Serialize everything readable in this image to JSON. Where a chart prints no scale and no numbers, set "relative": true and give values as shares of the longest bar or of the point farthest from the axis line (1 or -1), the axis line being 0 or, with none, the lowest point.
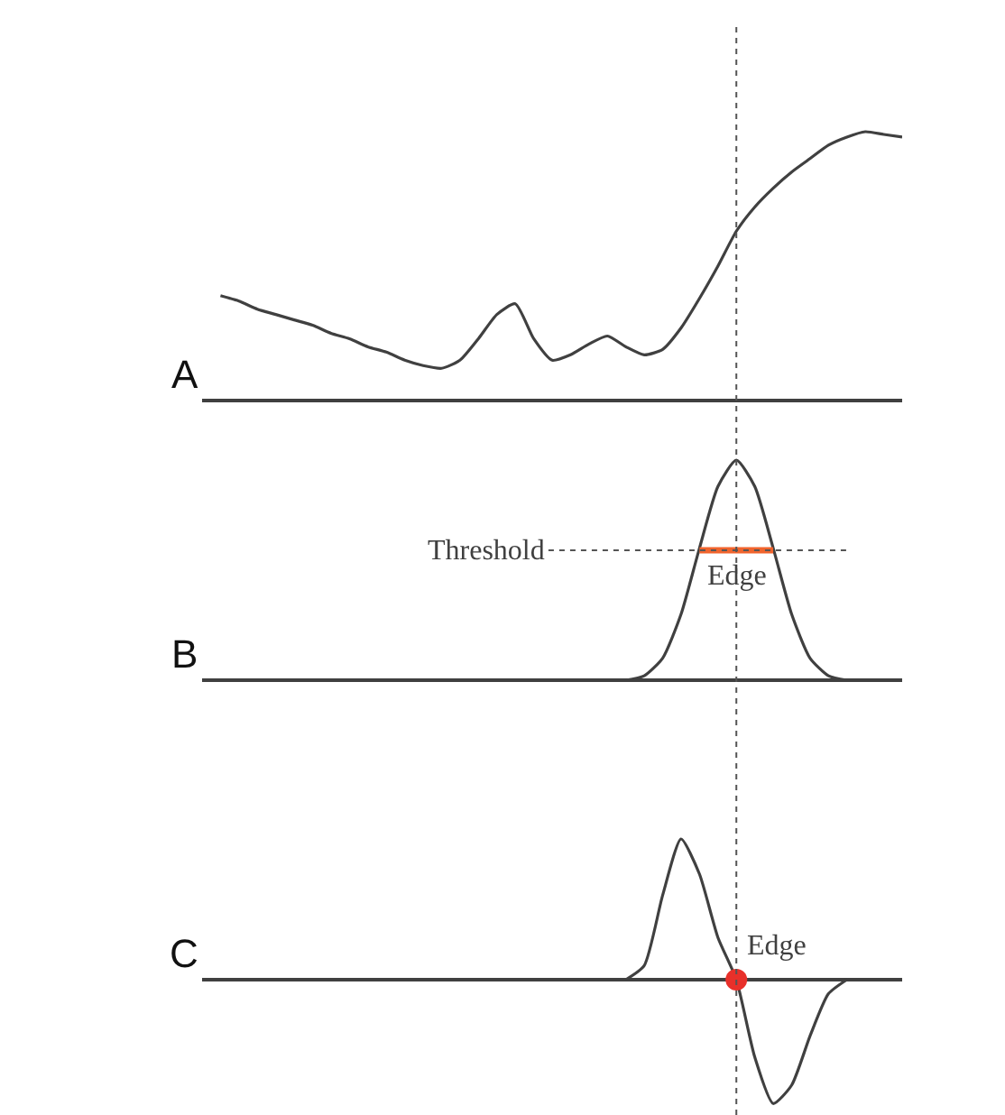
{
  "chart_data": [
    {
      "type": "line",
      "title": "A",
      "relative": true,
      "line_style": "solid",
      "marker": "none",
      "categories": [
        null,
        null,
        null,
        null,
        null,
        null,
        null,
        null,
        null,
        null,
        null,
        null,
        null,
        null,
        null,
        null,
        null,
        null,
        null,
        null,
        null,
        null,
        null,
        null,
        null,
        null,
        null,
        null,
        null,
        null,
        null,
        null,
        null,
        null,
        null,
        null,
        null,
        null,
        null
      ],
      "series": [
        {
          "color": "#404040",
          "values": [
            null,
            0.39,
            0.37,
            0.34,
            0.32,
            0.3,
            0.28,
            0.25,
            0.23,
            0.2,
            0.18,
            0.15,
            0.13,
            0.12,
            0.15,
            0.23,
            0.32,
            0.36,
            0.23,
            0.15,
            0.17,
            0.21,
            0.24,
            0.2,
            0.17,
            0.19,
            0.27,
            0.38,
            0.5,
            0.63,
            0.72,
            0.79,
            0.85,
            0.9,
            0.95,
            0.98,
            1,
            0.99,
            0.98
          ]
        }
      ]
    },
    {
      "type": "line",
      "title": "B",
      "relative": true,
      "line_style": "solid",
      "marker": "none",
      "categories": [
        null,
        null,
        null,
        null,
        null,
        null,
        null,
        null,
        null,
        null,
        null,
        null,
        null,
        null,
        null,
        null,
        null,
        null,
        null,
        null,
        null,
        null,
        null,
        null,
        null,
        null,
        null,
        null,
        null,
        null,
        null,
        null,
        null,
        null,
        null,
        null,
        null,
        null,
        null
      ],
      "series": [
        {
          "color": "#404040",
          "values": [
            null,
            null,
            null,
            null,
            null,
            null,
            null,
            null,
            null,
            null,
            null,
            null,
            null,
            null,
            null,
            null,
            null,
            null,
            null,
            null,
            null,
            null,
            null,
            0,
            0.02,
            0.1,
            0.3,
            0.6,
            0.88,
            1,
            0.88,
            0.6,
            0.3,
            0.1,
            0.02,
            0,
            null,
            null,
            null
          ]
        },
        {
          "color": "#f0642d",
          "values": [
            null,
            null,
            null,
            null,
            null,
            null,
            null,
            null,
            null,
            null,
            null,
            null,
            null,
            null,
            null,
            null,
            null,
            null,
            null,
            null,
            null,
            null,
            null,
            null,
            null,
            null,
            null,
            0.59,
            0.59,
            0.59,
            0.59,
            0.59,
            null,
            null,
            null,
            null,
            null,
            null,
            null
          ]
        }
      ],
      "ref_lines": [
        {
          "axis": "y",
          "value": 0.59,
          "label": "Threshold",
          "color": "#555555",
          "line_style": "dotted"
        }
      ],
      "annotations": [
        "Edge"
      ]
    },
    {
      "type": "line",
      "title": "C",
      "relative": true,
      "line_style": "solid",
      "marker": "none",
      "categories": [
        null,
        null,
        null,
        null,
        null,
        null,
        null,
        null,
        null,
        null,
        null,
        null,
        null,
        null,
        null,
        null,
        null,
        null,
        null,
        null,
        null,
        null,
        null,
        null,
        null,
        null,
        null,
        null,
        null,
        null,
        null,
        null,
        null,
        null,
        null,
        null,
        null,
        null,
        null
      ],
      "series": [
        {
          "color": "#404040",
          "values": [
            null,
            null,
            null,
            null,
            null,
            null,
            null,
            null,
            null,
            null,
            null,
            null,
            null,
            null,
            null,
            null,
            null,
            null,
            null,
            null,
            null,
            null,
            null,
            0,
            0.1,
            0.6,
            1,
            0.75,
            0.3,
            0,
            -0.55,
            -0.88,
            -0.75,
            -0.4,
            -0.1,
            0,
            null,
            null,
            null
          ]
        },
        {
          "type": "scatter",
          "marker": "circle",
          "color": "#e8302a",
          "values": [
            null,
            null,
            null,
            null,
            null,
            null,
            null,
            null,
            null,
            null,
            null,
            null,
            null,
            null,
            null,
            null,
            null,
            null,
            null,
            null,
            null,
            null,
            null,
            null,
            null,
            null,
            null,
            null,
            null,
            0,
            null,
            null,
            null,
            null,
            null,
            null,
            null,
            null,
            null
          ]
        }
      ],
      "annotations": [
        "Edge"
      ]
    }
  ]
}
